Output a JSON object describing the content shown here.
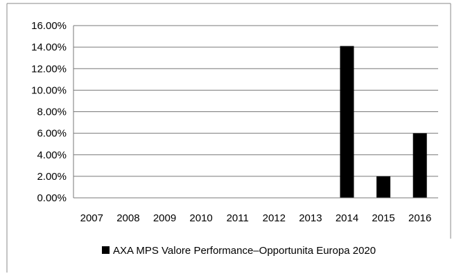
{
  "chart_data": {
    "type": "bar",
    "categories": [
      "2007",
      "2008",
      "2009",
      "2010",
      "2011",
      "2012",
      "2013",
      "2014",
      "2015",
      "2016"
    ],
    "series": [
      {
        "name": "AXA MPS Valore Performance–Opportunita Europa 2020",
        "values": [
          0,
          0,
          0,
          0,
          0,
          0,
          0,
          14.1,
          2.0,
          6.0
        ],
        "color": "#000000"
      }
    ],
    "y_ticks": [
      "0.00%",
      "2.00%",
      "4.00%",
      "6.00%",
      "8.00%",
      "10.00%",
      "12.00%",
      "14.00%",
      "16.00%"
    ],
    "ylim": [
      0,
      16
    ],
    "grid": true,
    "legend_position": "bottom"
  }
}
